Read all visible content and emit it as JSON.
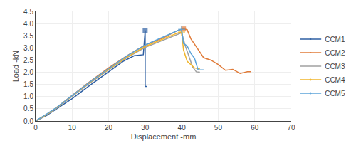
{
  "chart_data": {
    "type": "line",
    "xlabel": "Displacement -mm",
    "ylabel": "Load -kN",
    "xlim": [
      0,
      70
    ],
    "ylim": [
      0,
      4.5
    ],
    "xticks": [
      0,
      10,
      20,
      30,
      40,
      50,
      60,
      70
    ],
    "yticks": [
      {
        "value": 0,
        "label": "0.0"
      },
      {
        "value": 0.5,
        "label": "0.5"
      },
      {
        "value": 1,
        "label": "1.0"
      },
      {
        "value": 1.5,
        "label": "1.5"
      },
      {
        "value": 2,
        "label": "2.0"
      },
      {
        "value": 2.5,
        "label": "2.5"
      },
      {
        "value": 3,
        "label": "3.0"
      },
      {
        "value": 3.5,
        "label": "3.5"
      },
      {
        "value": 4,
        "label": "4.0"
      },
      {
        "value": 4.5,
        "label": "4.5"
      }
    ],
    "grid": true,
    "legend": "right",
    "series": [
      {
        "name": "CCM1",
        "color": "#2e5fa3",
        "marker": "square",
        "marker_x": [
          30.0
        ],
        "x": [
          0,
          1,
          3,
          6,
          10,
          15,
          20,
          24,
          27,
          29.5,
          30.0,
          30.0,
          30.5
        ],
        "values": [
          0,
          0.08,
          0.22,
          0.52,
          0.92,
          1.48,
          2.02,
          2.45,
          2.68,
          2.72,
          3.72,
          1.42,
          1.42
        ]
      },
      {
        "name": "CCM2",
        "color": "#e07b39",
        "marker": "square",
        "marker_x": [
          40.5
        ],
        "x": [
          0,
          1,
          3,
          6,
          10,
          15,
          20,
          25,
          30,
          35,
          39,
          40.5,
          41.5,
          42.5,
          44,
          46,
          48,
          50,
          52,
          54,
          56,
          58,
          59
        ],
        "values": [
          0,
          0.09,
          0.27,
          0.58,
          1.05,
          1.63,
          2.18,
          2.68,
          3.12,
          3.42,
          3.72,
          3.78,
          3.75,
          3.38,
          3.05,
          2.6,
          2.5,
          2.32,
          2.08,
          2.12,
          1.95,
          2.02,
          2.02
        ]
      },
      {
        "name": "CCM3",
        "color": "#a0a0a0",
        "x": [
          0,
          1,
          3,
          6,
          10,
          15,
          20,
          25,
          30,
          35,
          39,
          40,
          41,
          42,
          43,
          44,
          45
        ],
        "values": [
          0,
          0.08,
          0.25,
          0.55,
          1.0,
          1.57,
          2.1,
          2.6,
          3.02,
          3.32,
          3.58,
          3.62,
          3.08,
          2.62,
          2.22,
          2.02,
          2.0
        ]
      },
      {
        "name": "CCM4",
        "color": "#f0b429",
        "marker": "plus",
        "marker_x": [
          40
        ],
        "x": [
          0,
          1,
          3,
          6,
          10,
          15,
          20,
          25,
          30,
          35,
          39,
          40,
          40.5,
          41.5,
          42.5,
          43.5,
          44.5,
          45
        ],
        "values": [
          0,
          0.085,
          0.26,
          0.57,
          1.02,
          1.6,
          2.12,
          2.62,
          3.06,
          3.38,
          3.62,
          3.65,
          2.92,
          2.45,
          2.3,
          2.18,
          2.15,
          2.15
        ]
      },
      {
        "name": "CCM5",
        "color": "#5ba3d9",
        "marker": "plus",
        "marker_x": [
          40
        ],
        "x": [
          0,
          1,
          3,
          6,
          10,
          15,
          20,
          25,
          30,
          35,
          39,
          40,
          40.5,
          41.5,
          42.5,
          43.5,
          44.5,
          45.5,
          46
        ],
        "values": [
          0,
          0.09,
          0.28,
          0.58,
          1.05,
          1.62,
          2.15,
          2.67,
          3.12,
          3.46,
          3.72,
          3.76,
          3.18,
          3.08,
          2.78,
          2.58,
          2.1,
          2.1,
          2.1
        ]
      }
    ]
  }
}
